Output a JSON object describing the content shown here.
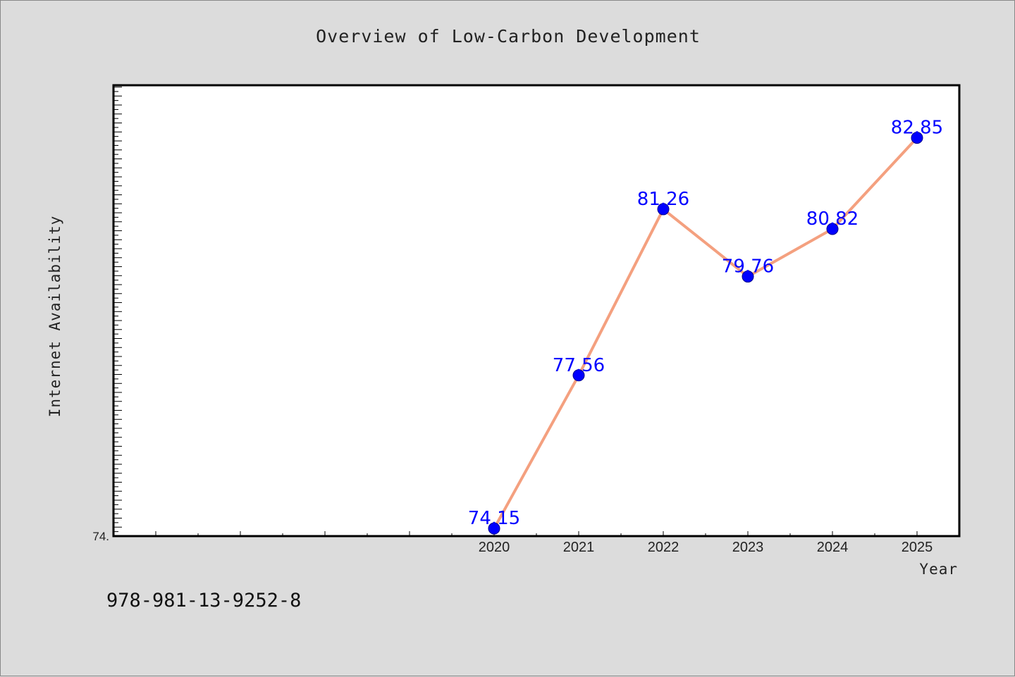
{
  "chart_data": {
    "type": "line",
    "title": "Overview of Low-Carbon Development",
    "xlabel": "Year",
    "ylabel": "Internet Availability",
    "x": [
      2020,
      2021,
      2022,
      2023,
      2024,
      2025
    ],
    "x_tick_labels": [
      "2020",
      "2021",
      "2022",
      "2023",
      "2024",
      "2025"
    ],
    "series": [
      {
        "values": [
          74.15,
          77.56,
          81.26,
          79.76,
          80.82,
          82.85
        ],
        "data_labels": [
          "74.15",
          "77.56",
          "81.26",
          "79.76",
          "80.82",
          "82.85"
        ]
      }
    ],
    "xlim": [
      2015.5,
      2025.5
    ],
    "ylim": [
      73.98,
      84.02
    ],
    "y_tick_label": "74.",
    "grid": false,
    "legend": "none",
    "colors": {
      "line": "#f4a07f",
      "marker": "#0000ff",
      "marker_edge": "#00008b",
      "data_label": "#0000ff",
      "plot_background": "#ffffff",
      "figure_background": "#dcdcdc"
    }
  },
  "footer": {
    "code": "978-981-13-9252-8"
  }
}
